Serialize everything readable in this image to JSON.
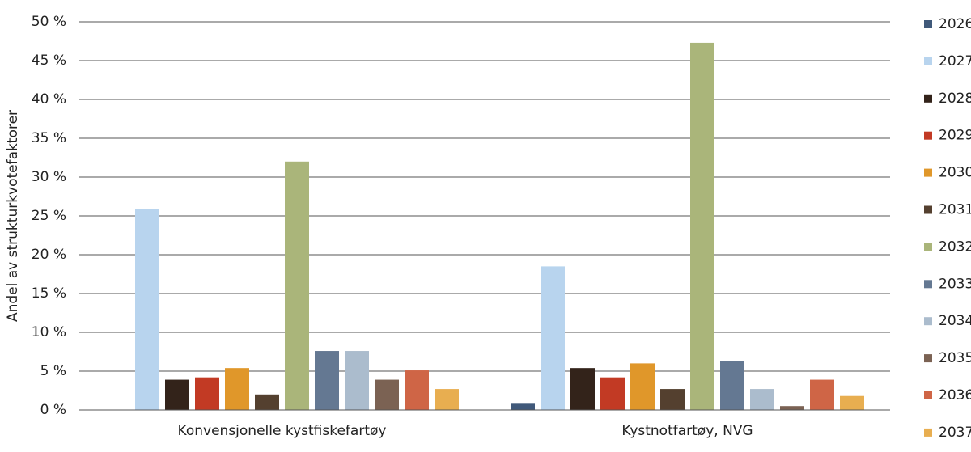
{
  "chart_data": {
    "type": "bar",
    "y_label": "Andel av strukturkvotefaktorer",
    "categories": [
      "Konvensjonelle kystfiskefartøy",
      "Kystnotfartøy, NVG"
    ],
    "series": [
      {
        "name": "2026",
        "color": "#40597a",
        "values": [
          0,
          0.8
        ]
      },
      {
        "name": "2027",
        "color": "#b8d4ee",
        "values": [
          25.9,
          18.5
        ]
      },
      {
        "name": "2028",
        "color": "#33231a",
        "values": [
          3.9,
          5.4
        ]
      },
      {
        "name": "2029",
        "color": "#c23a24",
        "values": [
          4.2,
          4.2
        ]
      },
      {
        "name": "2030",
        "color": "#e0972a",
        "values": [
          5.4,
          6.0
        ]
      },
      {
        "name": "2031",
        "color": "#54402f",
        "values": [
          2.0,
          2.7
        ]
      },
      {
        "name": "2032",
        "color": "#aab57a",
        "values": [
          32.0,
          47.3
        ]
      },
      {
        "name": "2033",
        "color": "#647892",
        "values": [
          7.6,
          6.3
        ]
      },
      {
        "name": "2034",
        "color": "#abbccd",
        "values": [
          7.6,
          2.7
        ]
      },
      {
        "name": "2035",
        "color": "#7b6253",
        "values": [
          3.9,
          0.5
        ]
      },
      {
        "name": "2036",
        "color": "#cf6546",
        "values": [
          5.1,
          3.9
        ]
      },
      {
        "name": "2037",
        "color": "#e8ae50",
        "values": [
          2.7,
          1.8
        ]
      }
    ],
    "ylim": [
      0,
      50
    ],
    "yticks": [
      {
        "value": 0,
        "label": "0 %"
      },
      {
        "value": 5,
        "label": "5 %"
      },
      {
        "value": 10,
        "label": "10 %"
      },
      {
        "value": 15,
        "label": "15 %"
      },
      {
        "value": 20,
        "label": "20 %"
      },
      {
        "value": 25,
        "label": "25 %"
      },
      {
        "value": 30,
        "label": "30 %"
      },
      {
        "value": 35,
        "label": "35 %"
      },
      {
        "value": 40,
        "label": "40 %"
      },
      {
        "value": 45,
        "label": "45 %"
      },
      {
        "value": 50,
        "label": "50 %"
      }
    ],
    "grid": true,
    "legend": "right"
  }
}
